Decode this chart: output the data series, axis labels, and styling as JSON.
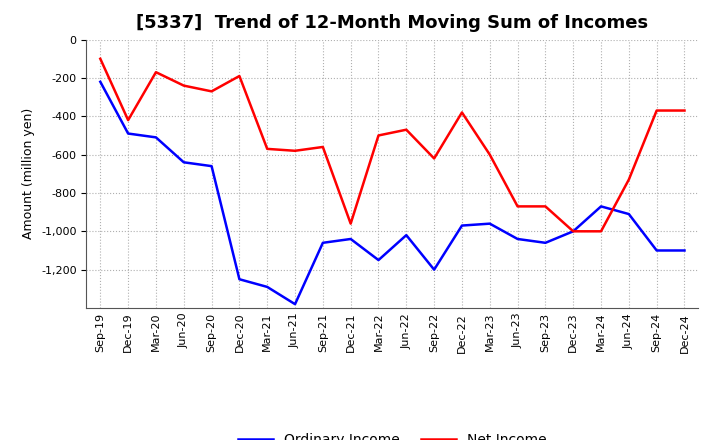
{
  "title": "[5337]  Trend of 12-Month Moving Sum of Incomes",
  "ylabel": "Amount (million yen)",
  "x_labels": [
    "Sep-19",
    "Dec-19",
    "Mar-20",
    "Jun-20",
    "Sep-20",
    "Dec-20",
    "Mar-21",
    "Jun-21",
    "Sep-21",
    "Dec-21",
    "Mar-22",
    "Jun-22",
    "Sep-22",
    "Dec-22",
    "Mar-23",
    "Jun-23",
    "Sep-23",
    "Dec-23",
    "Mar-24",
    "Jun-24",
    "Sep-24",
    "Dec-24"
  ],
  "ordinary_income": [
    -220,
    -490,
    -510,
    -640,
    -660,
    -1250,
    -1290,
    -1380,
    -1060,
    -1040,
    -1150,
    -1020,
    -1200,
    -970,
    -960,
    -1040,
    -1060,
    -1000,
    -870,
    -910,
    -1100,
    -1100
  ],
  "net_income": [
    -100,
    -420,
    -170,
    -240,
    -270,
    -190,
    -570,
    -580,
    -560,
    -960,
    -500,
    -470,
    -620,
    -380,
    -600,
    -870,
    -870,
    -1000,
    -1000,
    -730,
    -370,
    -370
  ],
  "ordinary_color": "#0000ff",
  "net_color": "#ff0000",
  "ylim_min": -1400,
  "ylim_max": 0,
  "ytick_values": [
    0,
    -200,
    -400,
    -600,
    -800,
    -1000,
    -1200
  ],
  "background_color": "#ffffff",
  "grid_color": "#b0b0b0",
  "title_fontsize": 13,
  "axis_label_fontsize": 9,
  "tick_fontsize": 8,
  "legend_labels": [
    "Ordinary Income",
    "Net Income"
  ],
  "legend_fontsize": 10,
  "line_width": 1.8
}
